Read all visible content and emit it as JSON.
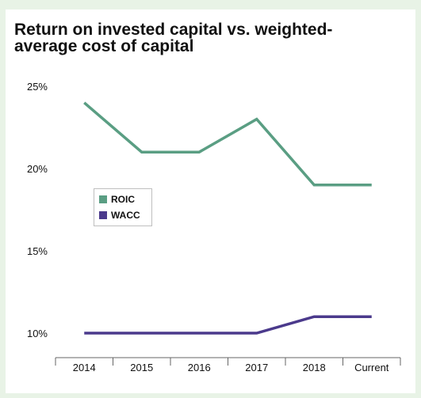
{
  "title": "Return on invested capital vs. weighted-average cost of capital",
  "colors": {
    "background": "#e8f3e6",
    "ROIC": "#5a9e83",
    "WACC": "#4b3a8c"
  },
  "chart_data": {
    "type": "line",
    "title": "Return on invested capital vs. weighted-average cost of capital",
    "categories": [
      "2014",
      "2015",
      "2016",
      "2017",
      "2018",
      "Current"
    ],
    "series": [
      {
        "name": "ROIC",
        "values": [
          24,
          21,
          21,
          23,
          19,
          19
        ]
      },
      {
        "name": "WACC",
        "values": [
          10,
          10,
          10,
          10,
          11,
          11
        ]
      }
    ],
    "y_ticks": [
      "25%",
      "20%",
      "15%",
      "10%"
    ],
    "ylim": [
      9,
      25
    ],
    "grid": false,
    "legend_position": "left-middle"
  }
}
